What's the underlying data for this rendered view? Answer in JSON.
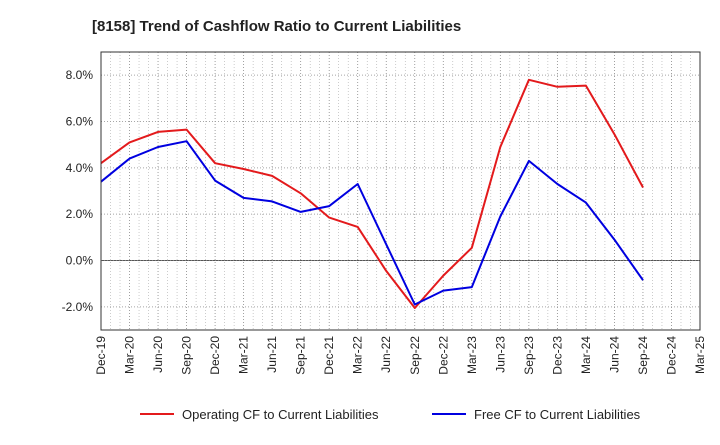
{
  "chart_data": {
    "type": "line",
    "title": "[8158]  Trend of Cashflow Ratio to Current Liabilities",
    "xlabel": "",
    "ylabel": "",
    "ylim": [
      -3.0,
      9.0
    ],
    "yticks": [
      -2.0,
      0.0,
      2.0,
      4.0,
      6.0,
      8.0
    ],
    "ytick_labels": [
      "-2.0%",
      "0.0%",
      "2.0%",
      "4.0%",
      "6.0%",
      "8.0%"
    ],
    "categories": [
      "Dec-19",
      "Mar-20",
      "Jun-20",
      "Sep-20",
      "Dec-20",
      "Mar-21",
      "Jun-21",
      "Sep-21",
      "Dec-21",
      "Mar-22",
      "Jun-22",
      "Sep-22",
      "Dec-22",
      "Mar-23",
      "Jun-23",
      "Sep-23",
      "Dec-23",
      "Mar-24",
      "Jun-24",
      "Sep-24",
      "Dec-24",
      "Mar-25"
    ],
    "grid": true,
    "legend_position": "bottom",
    "series": [
      {
        "name": "Operating CF to Current Liabilities",
        "color": "#e31a1c",
        "values": [
          4.2,
          5.1,
          5.55,
          5.65,
          4.2,
          3.95,
          3.65,
          2.9,
          1.85,
          1.45,
          -0.45,
          -2.05,
          -0.65,
          0.55,
          4.9,
          7.8,
          7.5,
          7.55,
          5.45,
          3.15,
          null,
          null
        ]
      },
      {
        "name": "Free CF to Current Liabilities",
        "color": "#0000e0",
        "values": [
          3.4,
          4.4,
          4.9,
          5.15,
          3.45,
          2.7,
          2.55,
          2.1,
          2.35,
          3.3,
          0.7,
          -1.9,
          -1.3,
          -1.15,
          1.9,
          4.3,
          3.3,
          2.5,
          0.9,
          -0.85,
          null,
          null
        ]
      }
    ]
  }
}
